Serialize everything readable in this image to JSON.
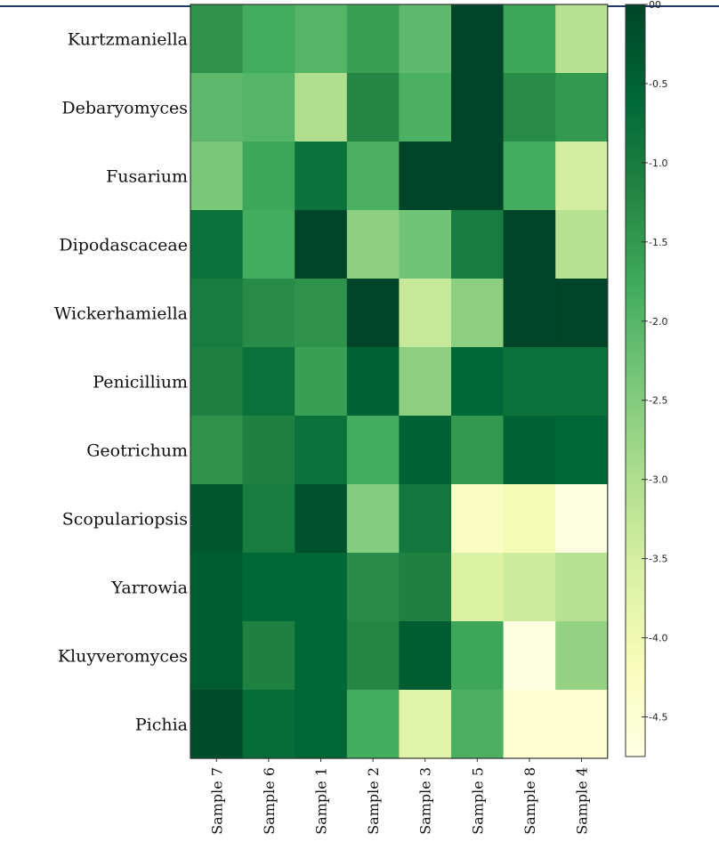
{
  "chart_data": {
    "type": "heatmap",
    "title": "",
    "xlabel": "",
    "ylabel": "",
    "rows": [
      "Kurtzmaniella",
      "Debaryomyces",
      "Fusarium",
      "Dipodascaceae",
      "Wickerhamiella",
      "Penicillium",
      "Geotrichum",
      "Scopulariopsis",
      "Yarrowia",
      "Kluyveromyces",
      "Pichia"
    ],
    "columns": [
      "Sample 7",
      "Sample 6",
      "Sample 1",
      "Sample 2",
      "Sample 3",
      "Sample 5",
      "Sample 8",
      "Sample 4"
    ],
    "values": [
      [
        -1.4,
        -1.8,
        -2.0,
        -1.6,
        -2.1,
        0.0,
        -1.7,
        -3.1
      ],
      [
        -2.1,
        -2.0,
        -3.0,
        -1.2,
        -1.9,
        0.0,
        -1.3,
        -1.5
      ],
      [
        -2.4,
        -1.7,
        -0.8,
        -1.9,
        0.0,
        0.0,
        -1.8,
        -3.5
      ],
      [
        -0.8,
        -1.8,
        0.0,
        -2.6,
        -2.3,
        -1.0,
        0.0,
        -3.1
      ],
      [
        -1.0,
        -1.3,
        -1.4,
        0.0,
        -3.3,
        -2.6,
        0.0,
        0.0
      ],
      [
        -1.1,
        -0.8,
        -1.6,
        -0.5,
        -2.6,
        -0.6,
        -0.8,
        -0.8
      ],
      [
        -1.4,
        -1.1,
        -0.8,
        -1.8,
        -0.5,
        -1.5,
        -0.5,
        -0.6
      ],
      [
        -0.3,
        -1.0,
        -0.2,
        -2.5,
        -0.9,
        -4.3,
        -4.1,
        -4.7
      ],
      [
        -0.4,
        -0.6,
        -0.6,
        -1.3,
        -1.1,
        -3.6,
        -3.4,
        -3.1
      ],
      [
        -0.4,
        -1.1,
        -0.6,
        -1.2,
        -0.4,
        -1.7,
        -4.7,
        -2.7
      ],
      [
        -0.1,
        -0.7,
        -0.6,
        -1.8,
        -3.7,
        -1.9,
        -4.5,
        -4.5
      ]
    ],
    "colorbar": {
      "min": -4.75,
      "max": 0.0,
      "ticks": [
        0.0,
        -0.5,
        -1.0,
        -1.5,
        -2.0,
        -2.5,
        -3.0,
        -3.5,
        -4.0,
        -4.5
      ],
      "tick_labels": [
        "00",
        "-0.5",
        "-1.0",
        "-1.5",
        "-2.0",
        "-2.5",
        "-3.0",
        "-3.5",
        "-4.0",
        "-4.5"
      ],
      "colormap": "YlGn",
      "stops": [
        "#ffffe5",
        "#f7fcb9",
        "#d9f0a3",
        "#addd8e",
        "#78c679",
        "#41ab5d",
        "#238443",
        "#006837",
        "#004529"
      ]
    }
  }
}
